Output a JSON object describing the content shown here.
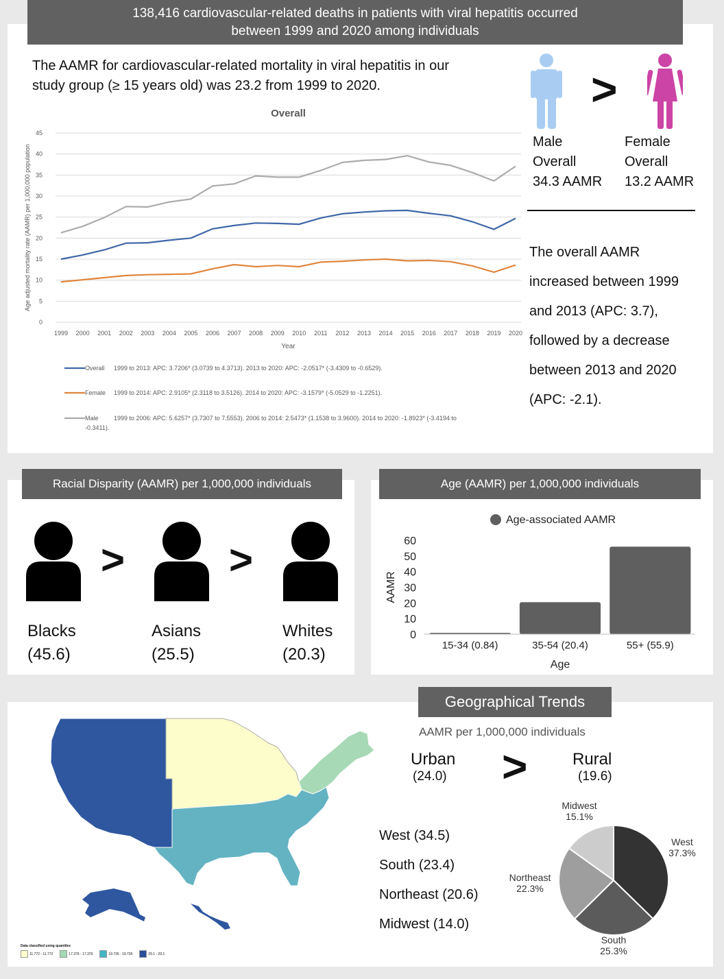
{
  "header": {
    "line1": "138,416 cardiovascular-related deaths in patients with viral hepatitis occurred",
    "line2": "between 1999 and 2020 among individuals"
  },
  "overall": {
    "intro_line1": "The AAMR for cardiovascular-related mortality in viral hepatitis in our",
    "intro_line2": "study group (≥ 15 years old) was 23.2 from 1999 to 2020.",
    "male_label": "Male",
    "male_overall": "Overall",
    "male_value": "34.3 AAMR",
    "female_label": "Female",
    "female_overall": "Overall",
    "female_value": "13.2 AAMR",
    "gt": ">",
    "trend_lines": [
      "The overall AAMR",
      "increased between 1999",
      "and 2013 (APC: 3.7),",
      "followed by a decrease",
      "between 2013 and 2020",
      "(APC: -2.1)."
    ]
  },
  "chart_data": [
    {
      "type": "line",
      "title": "Overall",
      "xlabel": "Year",
      "ylabel": "Age adjusted mortality rate (AAMR) per 1,000,000 population",
      "ylim": [
        0,
        45
      ],
      "yticks": [
        0,
        5,
        10,
        15,
        20,
        25,
        30,
        35,
        40,
        45
      ],
      "grid": true,
      "legend_placement": "bottom",
      "x": [
        "1999",
        "2000",
        "2001",
        "2002",
        "2003",
        "2004",
        "2005",
        "2006",
        "2007",
        "2008",
        "2009",
        "2010",
        "2011",
        "2012",
        "2013",
        "2014",
        "2015",
        "2016",
        "2017",
        "2018",
        "2019",
        "2020"
      ],
      "series": [
        {
          "name": "Overall",
          "legend_text": "1999 to 2013: APC: 3.7206* (3.0739 to 4.3713). 2013 to 2020: APC: -2.0517* (-3.4309 to -0.6529).",
          "color": "#3e66a8",
          "values": [
            15.0,
            16.0,
            17.2,
            18.8,
            18.9,
            19.5,
            20.0,
            22.2,
            23.0,
            23.6,
            23.5,
            23.3,
            24.8,
            25.8,
            26.2,
            26.5,
            26.6,
            25.9,
            25.3,
            23.9,
            22.1,
            24.7
          ]
        },
        {
          "name": "Female",
          "legend_text": "1999 to 2014: APC: 2.9105* (2.3118 to 3.5126). 2014 to 2020: APC: -3.1579* (-5.0529 to -1.2251).",
          "color": "#e0853c",
          "values": [
            9.6,
            10.1,
            10.6,
            11.1,
            11.3,
            11.4,
            11.5,
            12.7,
            13.7,
            13.2,
            13.5,
            13.2,
            14.3,
            14.5,
            14.8,
            15.0,
            14.6,
            14.7,
            14.4,
            13.4,
            11.9,
            13.6
          ]
        },
        {
          "name": "Male",
          "legend_text": "1999 to 2006: APC: 5.6257* (3.7307 to 7.5553). 2006 to 2014: 2.5473* (1.1538 to 3.9600). 2014 to 2020: -1.8923* (-3.4194 to",
          "legend_text2": "-0.3411).",
          "color": "#ababab",
          "values": [
            21.3,
            22.8,
            24.9,
            27.5,
            27.4,
            28.6,
            29.3,
            32.4,
            32.9,
            34.8,
            34.5,
            34.5,
            36.1,
            38.0,
            38.5,
            38.7,
            39.6,
            38.1,
            37.3,
            35.6,
            33.6,
            37.1
          ]
        }
      ]
    },
    {
      "type": "bar",
      "title": "",
      "legend": "Age-associated AAMR",
      "xlabel": "Age",
      "ylabel": "AAMR",
      "ylim": [
        0,
        60
      ],
      "yticks": [
        0,
        10,
        20,
        30,
        40,
        50,
        60
      ],
      "categories": [
        "15-34 (0.84)",
        "35-54 (20.4)",
        "55+ (55.9)"
      ],
      "values": [
        0.84,
        20.4,
        55.9
      ],
      "color": "#5f5f5f"
    },
    {
      "type": "pie",
      "labels": [
        "West",
        "South",
        "Northeast",
        "Midwest"
      ],
      "values": [
        37.3,
        25.3,
        22.3,
        15.1
      ],
      "value_labels": [
        "37.3%",
        "25.3%",
        "22.3%",
        "15.1%"
      ],
      "colors": [
        "#333333",
        "#5b5b5b",
        "#9e9e9e",
        "#cccccc"
      ]
    }
  ],
  "racial": {
    "title": "Racial Disparity  (AAMR) per 1,000,000 individuals",
    "gt": ">",
    "groups": [
      {
        "name": "Blacks",
        "value": "(45.6)"
      },
      {
        "name": "Asians",
        "value": "(25.5)"
      },
      {
        "name": "Whites",
        "value": "(20.3)"
      }
    ]
  },
  "age": {
    "title": "Age  (AAMR) per 1,000,000 individuals"
  },
  "geo": {
    "title": "Geographical Trends",
    "subtitle": "AAMR per 1,000,000 individuals",
    "urban_label": "Urban",
    "urban_value": "(24.0)",
    "rural_label": "Rural",
    "rural_value": "(19.6)",
    "gt": ">",
    "regions": [
      "West (34.5)",
      "South (23.4)",
      "Northeast (20.6)",
      "Midwest (14.0)"
    ],
    "map_legend_title": "Data classified using quantiles",
    "map_legend": [
      {
        "label": "11.772 - 11.772",
        "color": "#ffffcc"
      },
      {
        "label": "17.379 - 17.379",
        "color": "#a1dab4"
      },
      {
        "label": "19.735 - 19.735",
        "color": "#41b6c4"
      },
      {
        "label": "29.1 - 29.1",
        "color": "#2c4f9a"
      }
    ],
    "map_colors": {
      "west": "#2f57a0",
      "midwest": "#fdfdcb",
      "northeast": "#a8d9b6",
      "south": "#64b3c2"
    }
  }
}
